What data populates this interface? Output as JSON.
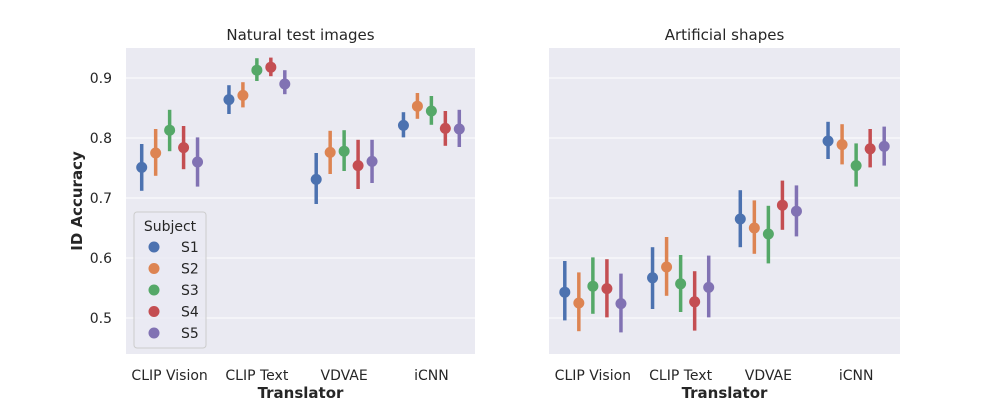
{
  "figure": {
    "ylabel": "ID Accuracy",
    "xlabel": "Translator"
  },
  "legend": {
    "title": "Subject",
    "placement": "lower-left",
    "entries": [
      "S1",
      "S2",
      "S3",
      "S4",
      "S5"
    ]
  },
  "colors": {
    "S1": "#4c72b0",
    "S2": "#dd8452",
    "S3": "#55a868",
    "S4": "#c44e52",
    "S5": "#8172b3",
    "panel_bg": "#eaeaf2",
    "grid": "#ffffff"
  },
  "chart_data": [
    {
      "type": "point",
      "title": "Natural test images",
      "xlabel": "Translator",
      "ylabel": "ID Accuracy",
      "categories": [
        "CLIP Vision",
        "CLIP Text",
        "VDVAE",
        "iCNN"
      ],
      "ylim": [
        0.44,
        0.95
      ],
      "yticks": [
        0.5,
        0.6,
        0.7,
        0.8,
        0.9
      ],
      "grid": true,
      "series": [
        {
          "name": "S1",
          "values": [
            0.751,
            0.864,
            0.731,
            0.821
          ],
          "ci_low": [
            0.712,
            0.84,
            0.69,
            0.801
          ],
          "ci_high": [
            0.79,
            0.888,
            0.775,
            0.843
          ]
        },
        {
          "name": "S2",
          "values": [
            0.775,
            0.871,
            0.776,
            0.853
          ],
          "ci_low": [
            0.737,
            0.851,
            0.74,
            0.832
          ],
          "ci_high": [
            0.815,
            0.893,
            0.812,
            0.875
          ]
        },
        {
          "name": "S3",
          "values": [
            0.813,
            0.913,
            0.778,
            0.845
          ],
          "ci_low": [
            0.778,
            0.895,
            0.745,
            0.822
          ],
          "ci_high": [
            0.847,
            0.933,
            0.813,
            0.87
          ]
        },
        {
          "name": "S4",
          "values": [
            0.784,
            0.918,
            0.754,
            0.816
          ],
          "ci_low": [
            0.748,
            0.903,
            0.715,
            0.787
          ],
          "ci_high": [
            0.82,
            0.934,
            0.797,
            0.845
          ]
        },
        {
          "name": "S5",
          "values": [
            0.76,
            0.89,
            0.761,
            0.815
          ],
          "ci_low": [
            0.719,
            0.873,
            0.725,
            0.785
          ],
          "ci_high": [
            0.801,
            0.913,
            0.797,
            0.847
          ]
        }
      ]
    },
    {
      "type": "point",
      "title": "Artificial shapes",
      "xlabel": "Translator",
      "ylabel": "",
      "categories": [
        "CLIP Vision",
        "CLIP Text",
        "VDVAE",
        "iCNN"
      ],
      "ylim": [
        0.44,
        0.95
      ],
      "yticks": [
        0.5,
        0.6,
        0.7,
        0.8,
        0.9
      ],
      "grid": true,
      "series": [
        {
          "name": "S1",
          "values": [
            0.543,
            0.567,
            0.665,
            0.795
          ],
          "ci_low": [
            0.496,
            0.515,
            0.618,
            0.765
          ],
          "ci_high": [
            0.595,
            0.618,
            0.713,
            0.827
          ]
        },
        {
          "name": "S2",
          "values": [
            0.525,
            0.585,
            0.65,
            0.789
          ],
          "ci_low": [
            0.478,
            0.537,
            0.607,
            0.756
          ],
          "ci_high": [
            0.576,
            0.635,
            0.696,
            0.823
          ]
        },
        {
          "name": "S3",
          "values": [
            0.553,
            0.557,
            0.64,
            0.754
          ],
          "ci_low": [
            0.507,
            0.51,
            0.591,
            0.719
          ],
          "ci_high": [
            0.601,
            0.605,
            0.687,
            0.791
          ]
        },
        {
          "name": "S4",
          "values": [
            0.549,
            0.527,
            0.688,
            0.782
          ],
          "ci_low": [
            0.501,
            0.479,
            0.647,
            0.751
          ],
          "ci_high": [
            0.598,
            0.578,
            0.729,
            0.815
          ]
        },
        {
          "name": "S5",
          "values": [
            0.524,
            0.551,
            0.678,
            0.786
          ],
          "ci_low": [
            0.476,
            0.501,
            0.636,
            0.754
          ],
          "ci_high": [
            0.574,
            0.604,
            0.721,
            0.819
          ]
        }
      ]
    }
  ]
}
